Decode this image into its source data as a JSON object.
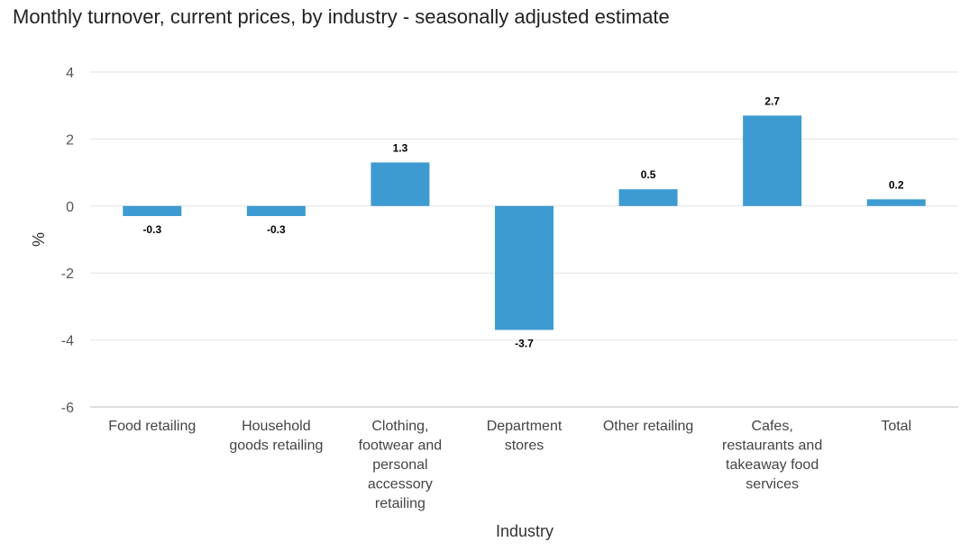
{
  "chart_data": {
    "type": "bar",
    "title": "Monthly turnover, current prices, by industry - seasonally adjusted estimate",
    "xlabel": "Industry",
    "ylabel": "%",
    "ylim": [
      -6,
      4
    ],
    "yticks": [
      "4",
      "2",
      "0",
      "-2",
      "-4",
      "-6"
    ],
    "grid": true,
    "categories": [
      "Food retailing",
      "Household goods retailing",
      "Clothing, footwear and personal accessory retailing",
      "Department stores",
      "Other retailing",
      "Cafes, restaurants and takeaway food services",
      "Total"
    ],
    "category_lines": [
      [
        "Food retailing"
      ],
      [
        "Household",
        "goods retailing"
      ],
      [
        "Clothing,",
        "footwear and",
        "personal",
        "accessory",
        "retailing"
      ],
      [
        "Department",
        "stores"
      ],
      [
        "Other retailing"
      ],
      [
        "Cafes,",
        "restaurants and",
        "takeaway food",
        "services"
      ],
      [
        "Total"
      ]
    ],
    "values": [
      -0.3,
      -0.3,
      1.3,
      -3.7,
      0.5,
      2.7,
      0.2
    ],
    "value_labels": [
      "-0.3",
      "-0.3",
      "1.3",
      "-3.7",
      "0.5",
      "2.7",
      "0.2"
    ],
    "colors": {
      "bar": "#3d9bd1",
      "grid": "#e2e2e2",
      "axis": "#bbbbbb"
    }
  }
}
